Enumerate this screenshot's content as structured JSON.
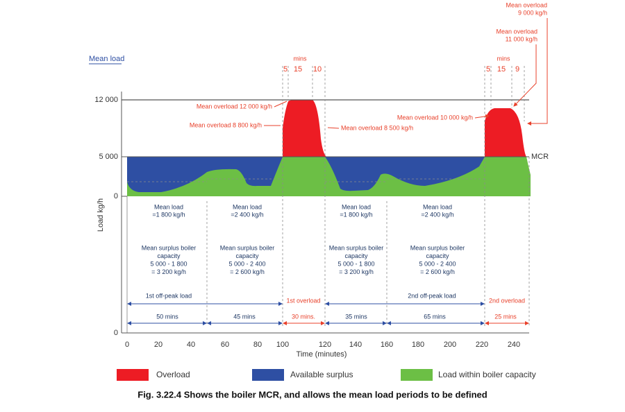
{
  "y_axis_title": "Mean load",
  "y_axis_label": "Load kg/h",
  "y_ticks": [
    "12 000",
    "5 000",
    "0",
    "0"
  ],
  "x_ticks": [
    0,
    20,
    40,
    60,
    80,
    100,
    120,
    140,
    160,
    180,
    200,
    220,
    240
  ],
  "x_axis_label": "Time (minutes)",
  "mcr_label": "MCR",
  "peak_1": {
    "mins": "mins",
    "segments": [
      5,
      15,
      10
    ],
    "labels": [
      "Mean overload 12 000 kg/h",
      "Mean overload 8 800 kg/h",
      "Mean overload 8 500 kg/h"
    ]
  },
  "peak_2": {
    "mins": "mins",
    "segments": [
      5,
      15,
      9
    ],
    "labels": [
      "Mean overload 10 000 kg/h"
    ],
    "callouts": [
      [
        "Mean overload",
        "9 000 kg/h"
      ],
      [
        "Mean overload",
        "11 000 kg/h"
      ]
    ]
  },
  "periods": [
    {
      "mean_load": [
        "Mean load",
        "=1 800 kg/h"
      ],
      "surplus": [
        "Mean surplus boiler",
        "capacity",
        "5 000 - 1 800",
        "= 3 200 kg/h"
      ]
    },
    {
      "mean_load": [
        "Mean load",
        "=2 400 kg/h"
      ],
      "surplus": [
        "Mean surplus boiler",
        "capacity",
        "5 000 - 2 400",
        "= 2 600 kg/h"
      ]
    },
    {
      "mean_load": [
        "Mean load",
        "=1 800 kg/h"
      ],
      "surplus": [
        "Mean surplus boiler",
        "capacity",
        "5 000 - 1 800",
        "= 3 200 kg/h"
      ]
    },
    {
      "mean_load": [
        "Mean load",
        "=2 400 kg/h"
      ],
      "surplus": [
        "Mean surplus boiler",
        "capacity",
        "5 000 - 2 400",
        "= 2 600 kg/h"
      ]
    }
  ],
  "spans": [
    "1st off-peak load",
    "1st overload",
    "2nd off-peak load",
    "2nd overload"
  ],
  "durations": [
    "50 mins",
    "45 mins",
    "30 mins.",
    "35 mins",
    "65 mins",
    "25 mins"
  ],
  "legend": [
    "Overload",
    "Available surplus",
    "Load within boiler capacity"
  ],
  "caption": "Fig. 3.22.4 Shows the boiler MCR, and allows the mean load periods to be defined"
}
